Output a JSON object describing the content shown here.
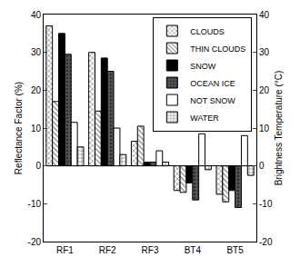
{
  "chart_data": {
    "type": "bar",
    "categories": [
      "RF1",
      "RF2",
      "RF3",
      "BT4",
      "BT5"
    ],
    "series": [
      {
        "name": "CLOUDS",
        "color": "#ffffff",
        "marker": "x",
        "values": [
          37,
          30,
          6.5,
          -6.5,
          -7.5
        ]
      },
      {
        "name": "THIN CLOUDS",
        "color": "#ffffff",
        "marker": "\\",
        "values": [
          17,
          14.5,
          10.5,
          -7,
          -9.5
        ]
      },
      {
        "name": "SNOW",
        "color": "#000000",
        "values": [
          35,
          28.5,
          1,
          -4.5,
          -6.5
        ]
      },
      {
        "name": "OCEAN ICE",
        "color": "#555555",
        "marker": ".",
        "values": [
          29.5,
          25,
          1,
          -9,
          -11
        ]
      },
      {
        "name": "NOT SNOW",
        "color": "#ffffff",
        "values": [
          11.5,
          10,
          4,
          8.5,
          8
        ]
      },
      {
        "name": "WATER",
        "color": "#ffffff",
        "marker": "+",
        "values": [
          5,
          3,
          1,
          -1,
          -2.5
        ]
      }
    ],
    "y_label": "Reflectance Factor (%)",
    "y2_label": "Brightness Temperature (°C)",
    "ylim": [
      -20,
      40
    ],
    "yticks": [
      -20,
      -10,
      0,
      10,
      20,
      30,
      40
    ],
    "y2lim": [
      -20,
      40
    ],
    "y2ticks": [
      -20,
      -10,
      0,
      10,
      20,
      30,
      40
    ],
    "grid": false,
    "legend": "top right"
  }
}
